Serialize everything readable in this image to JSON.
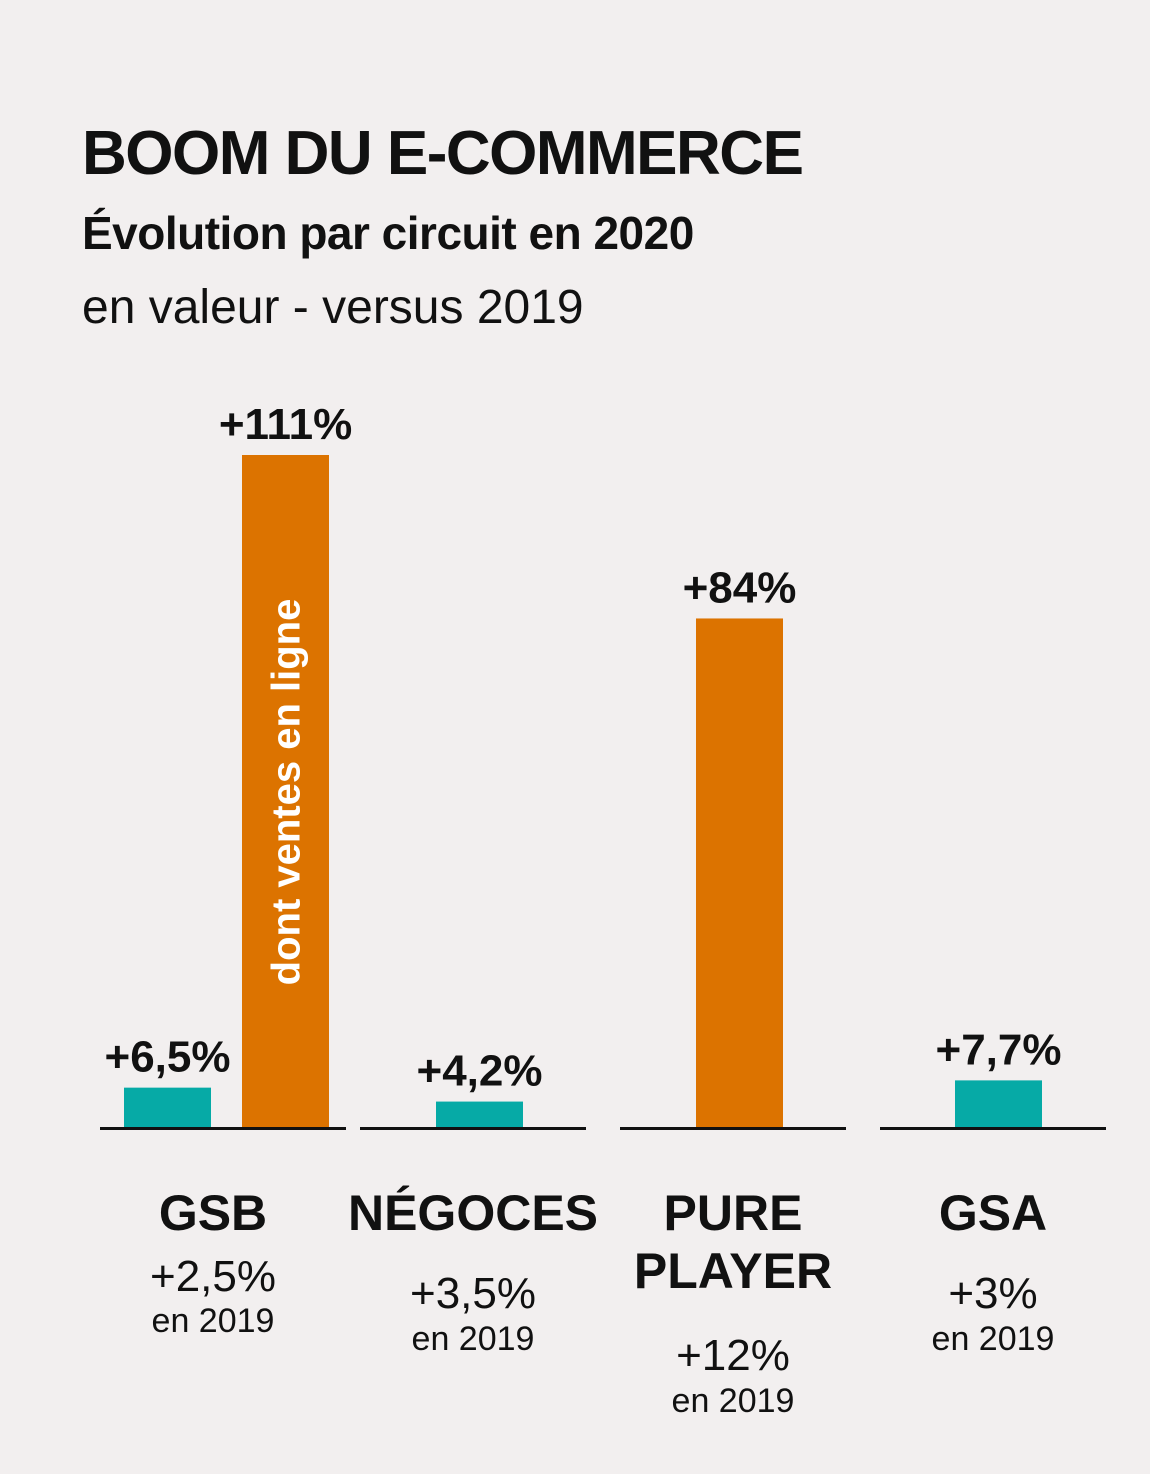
{
  "chart_data": {
    "type": "bar",
    "title": "BOOM DU E-COMMERCE",
    "subtitle": "Évolution par circuit en 2020",
    "subtitle2": "en valeur - versus 2019",
    "ylim": [
      0,
      120
    ],
    "colors": {
      "total": "#06aaa6",
      "online": "#dc7300",
      "axis": "#111111"
    },
    "inbar_label": "dont ventes en ligne",
    "categories": [
      {
        "name": "GSB",
        "total": 6.5,
        "total_label": "+6,5%",
        "online": 111,
        "online_label": "+111%",
        "yoy": "+2,5%",
        "yoy_sub": "en 2019"
      },
      {
        "name": "NÉGOCES",
        "total": 4.2,
        "total_label": "+4,2%",
        "yoy": "+3,5%",
        "yoy_sub": "en 2019"
      },
      {
        "name": "PURE PLAYER",
        "name_lines": [
          "PURE",
          "PLAYER"
        ],
        "online": 84,
        "online_label": "+84%",
        "yoy": "+12%",
        "yoy_sub": "en 2019"
      },
      {
        "name": "GSA",
        "total": 7.7,
        "total_label": "+7,7%",
        "yoy": "+3%",
        "yoy_sub": "en 2019"
      }
    ]
  }
}
